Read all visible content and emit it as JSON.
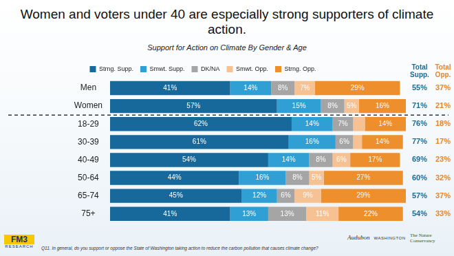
{
  "chart_data": {
    "type": "bar",
    "title": "Women and voters under 40 are especially strong supporters of climate action.",
    "subtitle": "Support for Action on Climate By Gender & Age",
    "footnote": "Q11. In general, do you support or oppose the State of Washington taking action to reduce the carbon pollution that causes climate change?",
    "logos": [
      "FM3",
      "RESEARCH",
      "The Nature Conservancy",
      "Audubon",
      "WASHINGTON"
    ],
    "orientation": "horizontal",
    "stacked": true,
    "data_labels": true,
    "legend": "top",
    "grid": false,
    "tick_labels": "y",
    "categories": [
      "Men",
      "Women",
      "18-29",
      "30-39",
      "40-49",
      "50-64",
      "65-74",
      "75+"
    ],
    "series": [
      {
        "name": "Strng. Supp.",
        "color": "#17699b",
        "values": [
          41,
          57,
          62,
          61,
          54,
          44,
          45,
          41
        ],
        "value_labels": [
          "41%",
          "57%",
          "62%",
          "61%",
          "54%",
          "44%",
          "45%",
          "41%"
        ]
      },
      {
        "name": "Smwt. Supp.",
        "color": "#2f9fd4",
        "values": [
          14,
          15,
          14,
          16,
          14,
          16,
          12,
          13
        ],
        "value_labels": [
          "14%",
          "15%",
          "14%",
          "16%",
          "14%",
          "16%",
          "12%",
          "13%"
        ]
      },
      {
        "name": "DK/NA",
        "color": "#a5a5a5",
        "values": [
          8,
          8,
          7,
          6,
          8,
          8,
          6,
          13
        ],
        "value_labels": [
          "8%",
          "8%",
          "7%",
          "6%",
          "8%",
          "8%",
          "6%",
          "13%"
        ]
      },
      {
        "name": "Smwt. Opp.",
        "color": "#f7c293",
        "values": [
          7,
          5,
          4,
          3,
          6,
          5,
          9,
          11
        ],
        "value_labels": [
          "7%",
          "5%",
          null,
          null,
          "6%",
          "5%",
          "9%",
          "11%"
        ]
      },
      {
        "name": "Strng. Opp.",
        "color": "#ee8f2e",
        "values": [
          29,
          16,
          14,
          14,
          17,
          27,
          29,
          22
        ],
        "value_labels": [
          "29%",
          "16%",
          "14%",
          "14%",
          "17%",
          "27%",
          "29%",
          "22%"
        ]
      }
    ],
    "totals": [
      {
        "name": "Total Supp.",
        "color": "#1a6b97",
        "values": [
          55,
          71,
          76,
          77,
          69,
          60,
          57,
          54
        ],
        "value_labels": [
          "55%",
          "71%",
          "76%",
          "77%",
          "69%",
          "60%",
          "57%",
          "54%"
        ]
      },
      {
        "name": "Total Opp.",
        "color": "#e8852a",
        "values": [
          37,
          21,
          18,
          17,
          23,
          32,
          37,
          33
        ],
        "value_labels": [
          "37%",
          "21%",
          "18%",
          "17%",
          "23%",
          "32%",
          "37%",
          "33%"
        ]
      }
    ]
  }
}
